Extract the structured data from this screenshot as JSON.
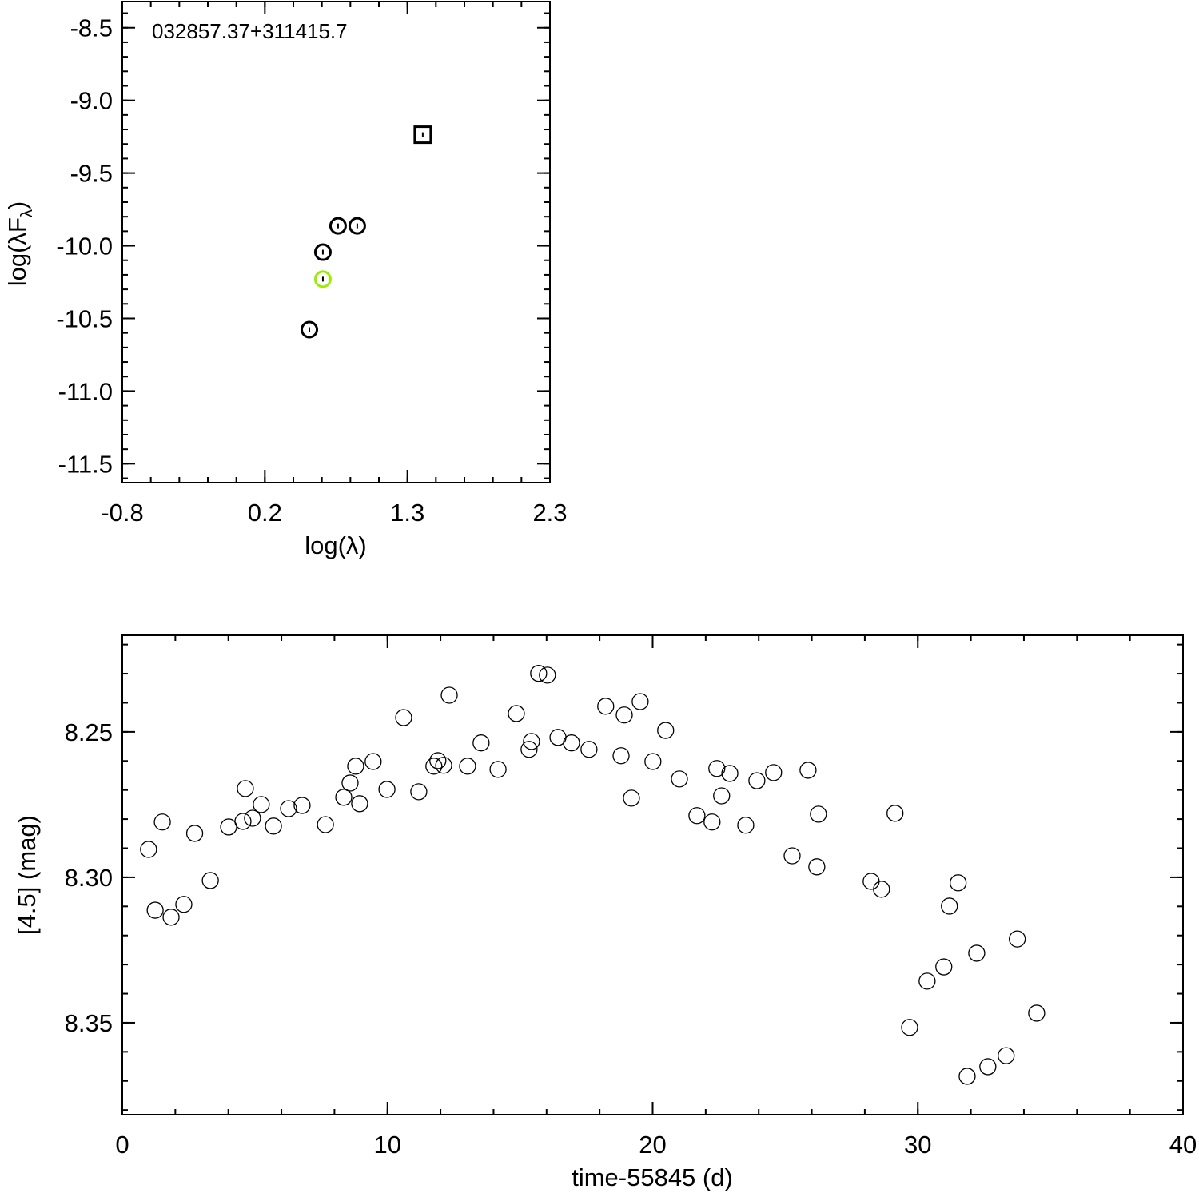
{
  "chart_data": [
    {
      "type": "scatter",
      "title": "032857.37+311415.7",
      "xlabel": "log(λ)",
      "ylabel_main": "log(λF",
      "ylabel_sub": "λ",
      "ylabel_close": ")",
      "xlim": [
        -0.8,
        2.3
      ],
      "ylim": [
        -11.63,
        -8.32
      ],
      "x_tick_labels": [
        "-0.8",
        "0.2",
        "1.3",
        "2.3"
      ],
      "y_ticks": [
        -8.5,
        -9.0,
        -9.5,
        -10.0,
        -10.5,
        -11.0,
        -11.5
      ],
      "y_tick_labels": [
        "-8.5",
        "-9.0",
        "-9.5",
        "-10.0",
        "-10.5",
        "-11.0",
        "-11.5"
      ],
      "colors": {
        "default": "#000000",
        "highlight": "#99ee00"
      },
      "points": [
        {
          "x": 1.378,
          "y": -9.236,
          "marker": "square",
          "color": "default"
        },
        {
          "x": 0.764,
          "y": -9.863,
          "marker": "circle",
          "color": "default"
        },
        {
          "x": 0.903,
          "y": -9.863,
          "marker": "circle",
          "color": "default"
        },
        {
          "x": 0.654,
          "y": -10.044,
          "marker": "circle",
          "color": "default"
        },
        {
          "x": 0.654,
          "y": -10.23,
          "marker": "circle",
          "color": "highlight"
        },
        {
          "x": 0.556,
          "y": -10.577,
          "marker": "circle",
          "color": "default"
        }
      ]
    },
    {
      "type": "scatter",
      "xlabel": "time-55845 (d)",
      "ylabel": "[4.5] (mag)",
      "xlim": [
        0,
        40
      ],
      "ylim": [
        8.3816,
        8.2168
      ],
      "x_ticks": [
        0,
        10,
        20,
        30,
        40
      ],
      "x_tick_labels": [
        "0",
        "10",
        "20",
        "30",
        "40"
      ],
      "y_ticks": [
        8.25,
        8.3,
        8.35
      ],
      "y_tick_labels": [
        "8.25",
        "8.30",
        "8.35"
      ],
      "points": [
        [
          0.99,
          8.2904
        ],
        [
          1.24,
          8.3113
        ],
        [
          1.51,
          8.281
        ],
        [
          1.84,
          8.3137
        ],
        [
          2.32,
          8.3093
        ],
        [
          2.73,
          8.2849
        ],
        [
          3.32,
          8.3011
        ],
        [
          4.01,
          8.2827
        ],
        [
          4.55,
          8.2808
        ],
        [
          4.64,
          8.2695
        ],
        [
          4.91,
          8.2797
        ],
        [
          5.24,
          8.275
        ],
        [
          5.7,
          8.2824
        ],
        [
          6.27,
          8.2764
        ],
        [
          6.78,
          8.2753
        ],
        [
          7.66,
          8.2819
        ],
        [
          8.35,
          8.2725
        ],
        [
          8.59,
          8.2676
        ],
        [
          8.8,
          8.2618
        ],
        [
          8.95,
          8.2747
        ],
        [
          9.46,
          8.2602
        ],
        [
          9.98,
          8.2698
        ],
        [
          10.61,
          8.2451
        ],
        [
          11.18,
          8.2706
        ],
        [
          11.75,
          8.2618
        ],
        [
          11.9,
          8.2599
        ],
        [
          12.12,
          8.2615
        ],
        [
          12.33,
          8.2374
        ],
        [
          13.02,
          8.2618
        ],
        [
          13.53,
          8.2538
        ],
        [
          14.17,
          8.2629
        ],
        [
          14.86,
          8.2437
        ],
        [
          15.34,
          8.256
        ],
        [
          15.43,
          8.2533
        ],
        [
          15.7,
          8.2299
        ],
        [
          16.03,
          8.2305
        ],
        [
          16.43,
          8.2519
        ],
        [
          16.94,
          8.2538
        ],
        [
          17.6,
          8.256
        ],
        [
          18.23,
          8.2412
        ],
        [
          18.81,
          8.2582
        ],
        [
          18.93,
          8.2442
        ],
        [
          19.2,
          8.2728
        ],
        [
          19.53,
          8.2396
        ],
        [
          20.01,
          8.2602
        ],
        [
          20.49,
          8.2495
        ],
        [
          21.01,
          8.2662
        ],
        [
          21.67,
          8.2788
        ],
        [
          22.24,
          8.281
        ],
        [
          22.42,
          8.2626
        ],
        [
          22.6,
          8.272
        ],
        [
          22.91,
          8.2643
        ],
        [
          23.51,
          8.2821
        ],
        [
          23.93,
          8.2668
        ],
        [
          24.56,
          8.264
        ],
        [
          25.26,
          8.2926
        ],
        [
          25.86,
          8.2632
        ],
        [
          26.19,
          8.2964
        ],
        [
          26.25,
          8.2783
        ],
        [
          28.24,
          8.3014
        ],
        [
          28.63,
          8.3041
        ],
        [
          29.14,
          8.278
        ],
        [
          29.69,
          8.3516
        ],
        [
          30.35,
          8.3357
        ],
        [
          30.98,
          8.3308
        ],
        [
          31.19,
          8.3099
        ],
        [
          31.52,
          8.3019
        ],
        [
          31.86,
          8.3684
        ],
        [
          32.22,
          8.3261
        ],
        [
          32.64,
          8.3651
        ],
        [
          33.33,
          8.3613
        ],
        [
          33.75,
          8.3212
        ],
        [
          34.48,
          8.3467
        ]
      ]
    }
  ]
}
